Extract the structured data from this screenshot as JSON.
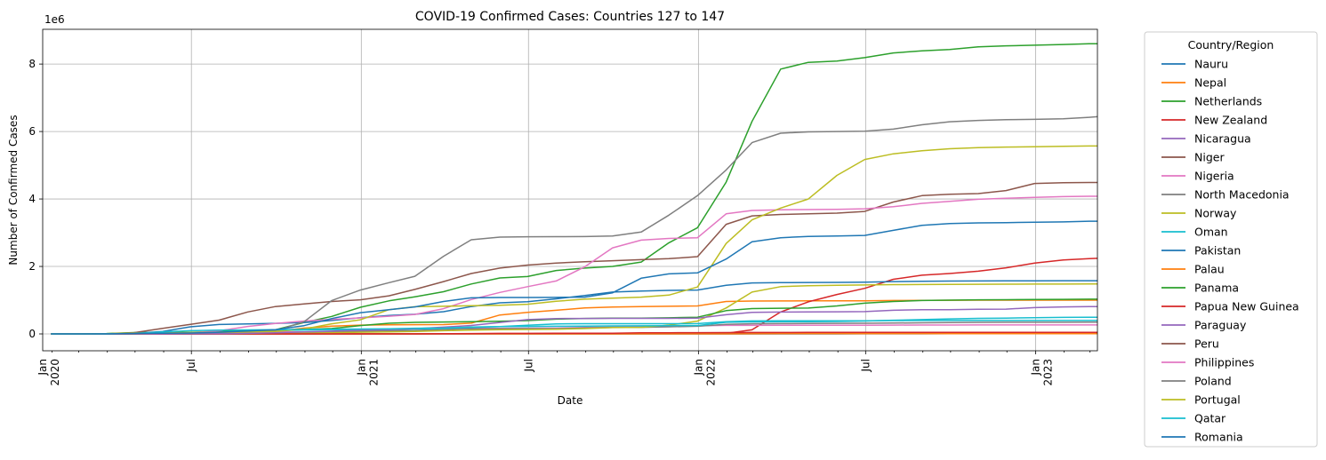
{
  "chart_data": {
    "type": "line",
    "title": "COVID-19 Confirmed Cases: Countries 127 to 147",
    "xlabel": "Date",
    "ylabel": "Number of Confirmed Cases",
    "y_offset_text": "1e6",
    "ylim": [
      -500000,
      9030000
    ],
    "xlim": [
      "2020-01-22",
      "2023-03-09"
    ],
    "y_ticks": [
      0,
      2000000,
      4000000,
      6000000,
      8000000
    ],
    "y_tick_labels": [
      "0",
      "2",
      "4",
      "6",
      "8"
    ],
    "x_ticks": [
      {
        "date": "2020-01-01",
        "lines": [
          "Jan",
          "2020"
        ]
      },
      {
        "date": "2020-07-01",
        "lines": [
          "Jul"
        ]
      },
      {
        "date": "2021-01-01",
        "lines": [
          "Jan",
          "2021"
        ]
      },
      {
        "date": "2021-07-01",
        "lines": [
          "Jul"
        ]
      },
      {
        "date": "2022-01-01",
        "lines": [
          "Jan",
          "2022"
        ]
      },
      {
        "date": "2022-07-01",
        "lines": [
          "Jul"
        ]
      },
      {
        "date": "2023-01-01",
        "lines": [
          "Jan",
          "2023"
        ]
      }
    ],
    "grid": true,
    "legend": {
      "title": "Country/Region",
      "placement": "outside right"
    },
    "x": [
      "2020-01-31",
      "2020-02-29",
      "2020-03-31",
      "2020-04-30",
      "2020-05-31",
      "2020-06-30",
      "2020-07-31",
      "2020-08-31",
      "2020-09-30",
      "2020-10-31",
      "2020-11-30",
      "2020-12-31",
      "2021-01-31",
      "2021-02-28",
      "2021-03-31",
      "2021-04-30",
      "2021-05-31",
      "2021-06-30",
      "2021-07-31",
      "2021-08-31",
      "2021-09-30",
      "2021-10-31",
      "2021-11-30",
      "2021-12-31",
      "2022-01-31",
      "2022-02-28",
      "2022-03-31",
      "2022-04-30",
      "2022-05-31",
      "2022-06-30",
      "2022-07-31",
      "2022-08-31",
      "2022-09-30",
      "2022-10-31",
      "2022-11-30",
      "2022-12-31",
      "2023-01-31",
      "2023-02-28",
      "2023-03-09"
    ],
    "series": [
      {
        "name": "Nauru",
        "color": "#1f77b4",
        "values": [
          0,
          0,
          0,
          0,
          0,
          0,
          0,
          0,
          0,
          0,
          0,
          0,
          0,
          0,
          0,
          0,
          0,
          0,
          0,
          0,
          0,
          0,
          0,
          0,
          0,
          0,
          0,
          0,
          0,
          2000,
          3000,
          4000,
          4500,
          4700,
          4800,
          5000,
          5100,
          5200,
          5200
        ]
      },
      {
        "name": "Nepal",
        "color": "#ff7f0e",
        "values": [
          0,
          0,
          0,
          0,
          1000,
          13000,
          20000,
          38000,
          77000,
          170000,
          230000,
          260000,
          270000,
          274000,
          276000,
          320000,
          560000,
          640000,
          700000,
          770000,
          795000,
          810000,
          820000,
          830000,
          960000,
          975000,
          978000,
          979000,
          979000,
          980000,
          990000,
          995000,
          998000,
          1000000,
          1001000,
          1001000,
          1001000,
          1001000,
          1001000
        ]
      },
      {
        "name": "Netherlands",
        "color": "#2ca02c",
        "values": [
          0,
          0,
          12000,
          39000,
          46000,
          50000,
          56000,
          70000,
          125000,
          340000,
          520000,
          790000,
          980000,
          1100000,
          1250000,
          1480000,
          1660000,
          1700000,
          1880000,
          1950000,
          2000000,
          2130000,
          2700000,
          3150000,
          4500000,
          6300000,
          7850000,
          8050000,
          8090000,
          8190000,
          8330000,
          8390000,
          8430000,
          8510000,
          8540000,
          8560000,
          8580000,
          8600000,
          8600000
        ]
      },
      {
        "name": "New Zealand",
        "color": "#d62728",
        "values": [
          0,
          0,
          600,
          1500,
          1500,
          1500,
          1550,
          1750,
          1850,
          1900,
          2000,
          2150,
          2300,
          2350,
          2450,
          2600,
          2650,
          2750,
          2850,
          3700,
          4100,
          5600,
          10000,
          14000,
          17000,
          120000,
          650000,
          950000,
          1170000,
          1350000,
          1620000,
          1740000,
          1790000,
          1860000,
          1960000,
          2100000,
          2190000,
          2230000,
          2240000
        ]
      },
      {
        "name": "Nicaragua",
        "color": "#9467bd",
        "values": [
          0,
          0,
          0,
          14,
          800,
          2200,
          3700,
          4700,
          5100,
          5400,
          5700,
          6100,
          6400,
          6700,
          7100,
          7500,
          7900,
          8400,
          10000,
          12000,
          14000,
          15000,
          16000,
          17500,
          18000,
          18500,
          18600,
          18700,
          18800,
          19200,
          20500,
          21000,
          22000,
          23000,
          23500,
          24500,
          25500,
          26500,
          26500
        ]
      },
      {
        "name": "Niger",
        "color": "#8c564b",
        "values": [
          0,
          0,
          25,
          720,
          950,
          1050,
          1100,
          1170,
          1190,
          1220,
          1600,
          3300,
          4600,
          4800,
          5000,
          5200,
          5300,
          5400,
          5600,
          5800,
          6000,
          6200,
          6700,
          7200,
          8000,
          8700,
          8800,
          8900,
          8900,
          9000,
          9100,
          9200,
          9300,
          9400,
          9400,
          9500,
          9600,
          9600,
          9600
        ]
      },
      {
        "name": "Nigeria",
        "color": "#e377c2",
        "values": [
          0,
          0,
          140,
          1900,
          10000,
          25000,
          43000,
          54000,
          58000,
          62000,
          67000,
          87000,
          131000,
          156000,
          163000,
          165000,
          167000,
          168000,
          172000,
          190000,
          205000,
          212000,
          214000,
          240000,
          253000,
          254000,
          255000,
          256000,
          256000,
          257000,
          262000,
          263000,
          264000,
          265000,
          266000,
          266000,
          266000,
          266000,
          266000
        ]
      },
      {
        "name": "North Macedonia",
        "color": "#7f7f7f",
        "values": [
          0,
          0,
          300,
          1400,
          2000,
          6500,
          10000,
          14000,
          17000,
          29000,
          58000,
          80000,
          95000,
          103000,
          131000,
          151000,
          155000,
          155000,
          156000,
          176000,
          189000,
          195000,
          210000,
          227000,
          285000,
          300000,
          306000,
          311000,
          313000,
          315000,
          321000,
          330000,
          338000,
          342000,
          344000,
          345000,
          346000,
          347000,
          347000
        ]
      },
      {
        "name": "Norway",
        "color": "#bcbd22",
        "values": [
          0,
          0,
          4600,
          7700,
          8400,
          8900,
          9200,
          10500,
          13600,
          18000,
          34000,
          50000,
          62000,
          70000,
          96000,
          114000,
          126000,
          132000,
          137000,
          159000,
          188000,
          196000,
          260000,
          380000,
          770000,
          1240000,
          1400000,
          1430000,
          1440000,
          1450000,
          1460000,
          1465000,
          1470000,
          1472000,
          1474000,
          1476000,
          1478000,
          1480000,
          1480000
        ]
      },
      {
        "name": "Oman",
        "color": "#17becf",
        "values": [
          0,
          0,
          200,
          2400,
          12000,
          41000,
          79000,
          86000,
          100000,
          116000,
          124000,
          128000,
          133000,
          144000,
          167000,
          194000,
          215000,
          255000,
          297000,
          303000,
          304000,
          304000,
          304000,
          305000,
          364000,
          384000,
          388000,
          389000,
          390000,
          391000,
          395000,
          398000,
          399000,
          399000,
          399000,
          399000,
          399000,
          399000,
          399000
        ]
      },
      {
        "name": "Pakistan",
        "color": "#1f77b4",
        "values": [
          0,
          2,
          2000,
          16000,
          70000,
          210000,
          280000,
          297000,
          313000,
          335000,
          398000,
          482000,
          547000,
          581000,
          659000,
          810000,
          922000,
          954000,
          1040000,
          1140000,
          1240000,
          1270000,
          1290000,
          1300000,
          1440000,
          1510000,
          1520000,
          1525000,
          1528000,
          1535000,
          1550000,
          1560000,
          1566000,
          1570000,
          1573000,
          1575000,
          1576000,
          1577000,
          1577000
        ]
      },
      {
        "name": "Palau",
        "color": "#ff7f0e",
        "values": [
          0,
          0,
          0,
          0,
          0,
          0,
          0,
          0,
          0,
          0,
          0,
          0,
          0,
          0,
          0,
          0,
          0,
          0,
          0,
          0,
          0,
          0,
          0,
          0,
          0,
          3000,
          4200,
          4800,
          5100,
          5500,
          5700,
          5800,
          5900,
          5950,
          5980,
          6000,
          6000,
          6000,
          6000
        ]
      },
      {
        "name": "Panama",
        "color": "#2ca02c",
        "values": [
          0,
          0,
          1000,
          6500,
          13000,
          33000,
          65000,
          94000,
          111000,
          134000,
          160000,
          247000,
          317000,
          343000,
          352000,
          363000,
          375000,
          396000,
          437000,
          458000,
          466000,
          470000,
          476000,
          496000,
          690000,
          750000,
          760000,
          765000,
          830000,
          910000,
          960000,
          990000,
          1000000,
          1010000,
          1015000,
          1020000,
          1025000,
          1030000,
          1030000
        ]
      },
      {
        "name": "Papua New Guinea",
        "color": "#d62728",
        "values": [
          0,
          0,
          1,
          8,
          8,
          11,
          60,
          460,
          530,
          590,
          640,
          780,
          840,
          1300,
          5500,
          11000,
          16000,
          17000,
          17600,
          18500,
          22000,
          31000,
          35500,
          36000,
          40000,
          42000,
          43500,
          44000,
          44100,
          44300,
          44700,
          45000,
          45500,
          45700,
          46000,
          46300,
          46500,
          46700,
          46800
        ]
      },
      {
        "name": "Paraguay",
        "color": "#9467bd",
        "values": [
          0,
          0,
          70,
          240,
          900,
          2300,
          5200,
          15000,
          35000,
          59000,
          82000,
          108000,
          133000,
          156000,
          199000,
          251000,
          340000,
          423000,
          456000,
          459000,
          460000,
          461000,
          462000,
          465000,
          570000,
          640000,
          648000,
          650000,
          655000,
          660000,
          700000,
          715000,
          720000,
          730000,
          735000,
          780000,
          800000,
          810000,
          810000
        ]
      },
      {
        "name": "Peru",
        "color": "#8c564b",
        "values": [
          0,
          0,
          1000,
          36000,
          165000,
          285000,
          407000,
          650000,
          810000,
          890000,
          960000,
          1010000,
          1130000,
          1320000,
          1550000,
          1790000,
          1950000,
          2040000,
          2100000,
          2140000,
          2170000,
          2200000,
          2230000,
          2290000,
          3250000,
          3500000,
          3540000,
          3560000,
          3580000,
          3630000,
          3910000,
          4100000,
          4140000,
          4160000,
          4250000,
          4460000,
          4480000,
          4490000,
          4490000
        ]
      },
      {
        "name": "Philippines",
        "color": "#e377c2",
        "values": [
          0,
          3,
          2000,
          8500,
          18000,
          37000,
          93000,
          221000,
          311000,
          382000,
          431000,
          474000,
          525000,
          577000,
          747000,
          1020000,
          1230000,
          1400000,
          1570000,
          1990000,
          2550000,
          2780000,
          2830000,
          2850000,
          3560000,
          3660000,
          3680000,
          3685000,
          3690000,
          3710000,
          3770000,
          3870000,
          3930000,
          3990000,
          4020000,
          4050000,
          4070000,
          4080000,
          4080000
        ]
      },
      {
        "name": "Poland",
        "color": "#7f7f7f",
        "values": [
          0,
          0,
          2300,
          12900,
          23400,
          34400,
          46300,
          67000,
          90000,
          360000,
          990000,
          1300000,
          1520000,
          1710000,
          2300000,
          2790000,
          2870000,
          2880000,
          2882000,
          2886000,
          2900000,
          3020000,
          3520000,
          4100000,
          4860000,
          5670000,
          5950000,
          5990000,
          6000000,
          6010000,
          6070000,
          6200000,
          6290000,
          6330000,
          6350000,
          6360000,
          6380000,
          6420000,
          6440000
        ]
      },
      {
        "name": "Portugal",
        "color": "#bcbd22",
        "values": [
          0,
          0,
          8000,
          25000,
          32500,
          42000,
          51000,
          58000,
          75000,
          144000,
          300000,
          420000,
          720000,
          805000,
          820000,
          838000,
          850000,
          880000,
          970000,
          1030000,
          1060000,
          1090000,
          1150000,
          1390000,
          2680000,
          3380000,
          3730000,
          4000000,
          4700000,
          5170000,
          5340000,
          5430000,
          5490000,
          5520000,
          5540000,
          5550000,
          5560000,
          5570000,
          5570000
        ]
      },
      {
        "name": "Qatar",
        "color": "#17becf",
        "values": [
          0,
          0,
          780,
          13400,
          56900,
          96000,
          111000,
          118000,
          126000,
          132000,
          139000,
          145000,
          151000,
          168000,
          173000,
          206000,
          217000,
          222000,
          226000,
          232000,
          237000,
          240000,
          245000,
          248000,
          345000,
          355000,
          360000,
          363000,
          370000,
          382000,
          405000,
          425000,
          445000,
          460000,
          470000,
          483000,
          489000,
          495000,
          495000
        ]
      },
      {
        "name": "Romania",
        "color": "#1f77b4",
        "values": [
          0,
          3,
          2200,
          11600,
          19200,
          26900,
          50000,
          88000,
          125000,
          246000,
          455000,
          630000,
          720000,
          800000,
          960000,
          1070000,
          1080000,
          1080000,
          1083000,
          1090000,
          1220000,
          1650000,
          1780000,
          1810000,
          2220000,
          2730000,
          2850000,
          2890000,
          2900000,
          2920000,
          3070000,
          3220000,
          3270000,
          3290000,
          3300000,
          3310000,
          3320000,
          3340000,
          3340000
        ]
      }
    ]
  }
}
